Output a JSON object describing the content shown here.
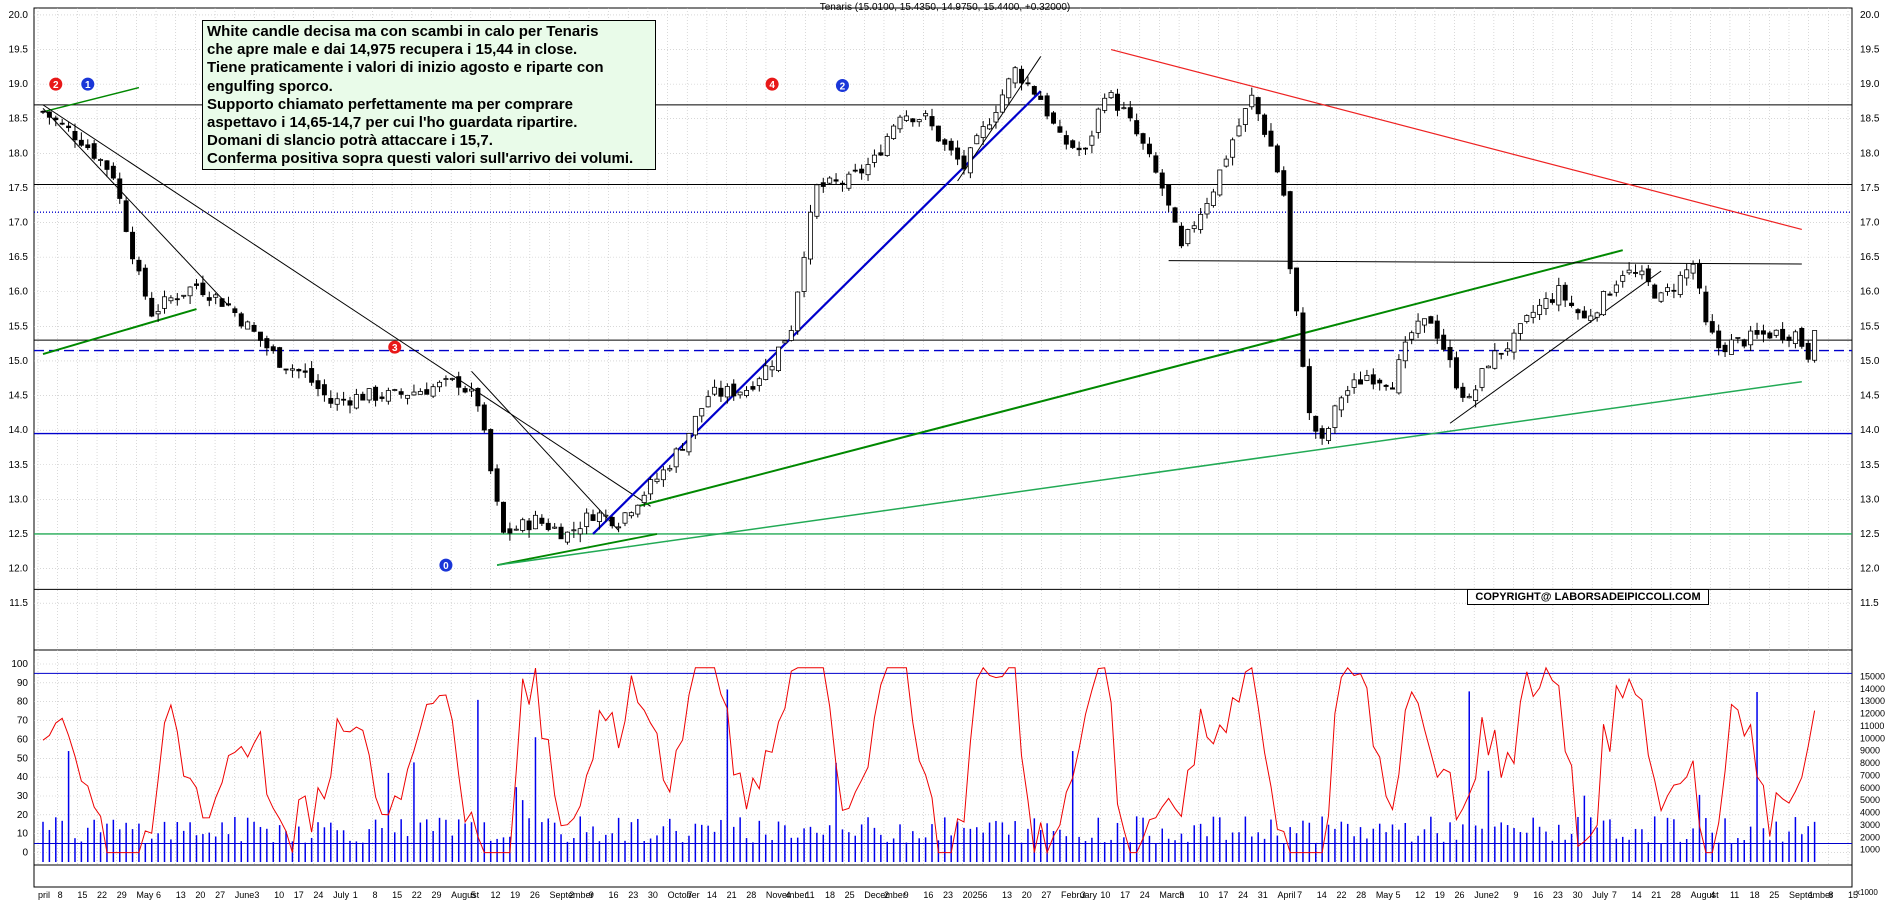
{
  "header": {
    "title": "Tenaris (15.0100, 15.4350, 14.9750, 15.4400, +0.32000)"
  },
  "note": {
    "lines": [
      "White candle decisa ma con scambi in calo per Tenaris",
      "che apre male e dai 14,975 recupera i 15,44 in close.",
      "Tiene praticamente i valori di inizio agosto e riparte con",
      "engulfing sporco.",
      "Supporto chiamato perfettamente ma per comprare",
      "aspettavo i 14,65-14,7 per cui l'ho guardata ripartire.",
      "Domani di slancio potrà attaccare i 15,7.",
      "Conferma positiva sopra questi valori sull'arrivo dei volumi."
    ]
  },
  "copyright": "COPYRIGHT@ LABORSADEIPICCOLI.COM",
  "colors": {
    "candle_up": "#ffffff",
    "candle_down": "#000000",
    "grid": "#c0c0c0",
    "support_blue": "#0000cc",
    "trend_green": "#008800",
    "light_green": "#22aa55",
    "resistance_red": "#ee2222",
    "osc_red": "#ee0000",
    "volume_blue": "#0000ee"
  },
  "chart_data": [
    {
      "type": "candlestick",
      "title": "Tenaris (15.0100, 15.4350, 14.9750, 15.4400, +0.32000)",
      "ylim": [
        11.3,
        20.1
      ],
      "y_ticks": [
        11.5,
        12.0,
        12.5,
        13.0,
        13.5,
        14.0,
        14.5,
        15.0,
        15.5,
        16.0,
        16.5,
        17.0,
        17.5,
        18.0,
        18.5,
        19.0,
        19.5,
        20.0
      ],
      "x_tick_labels": [
        "pril",
        "8",
        "15",
        "22",
        "29",
        "May",
        "6",
        "13",
        "20",
        "27",
        "June",
        "3",
        "10",
        "17",
        "24",
        "July",
        "1",
        "8",
        "15",
        "22",
        "29",
        "August",
        "5",
        "12",
        "19",
        "26",
        "September",
        "2",
        "9",
        "16",
        "23",
        "30",
        "October",
        "7",
        "14",
        "21",
        "28",
        "November",
        "4",
        "11",
        "18",
        "25",
        "December",
        "2",
        "9",
        "16",
        "23",
        "2025",
        "6",
        "13",
        "20",
        "27",
        "February",
        "3",
        "10",
        "17",
        "24",
        "March",
        "3",
        "10",
        "17",
        "24",
        "31",
        "April",
        "7",
        "14",
        "22",
        "28",
        "May",
        "5",
        "12",
        "19",
        "26",
        "June",
        "2",
        "9",
        "16",
        "23",
        "30",
        "July",
        "7",
        "14",
        "21",
        "28",
        "August",
        "4",
        "11",
        "18",
        "25",
        "September",
        "1",
        "8",
        "15"
      ],
      "last_bar": {
        "open": 15.01,
        "high": 15.435,
        "low": 14.975,
        "close": 15.44,
        "change": 0.32
      },
      "price_path": [
        [
          0,
          18.6
        ],
        [
          6,
          18.2
        ],
        [
          11,
          17.7
        ],
        [
          15,
          16.2
        ],
        [
          17,
          15.7
        ],
        [
          20,
          15.9
        ],
        [
          24,
          16.1
        ],
        [
          29,
          15.8
        ],
        [
          33,
          15.4
        ],
        [
          37,
          15.0
        ],
        [
          41,
          14.8
        ],
        [
          45,
          14.4
        ],
        [
          50,
          14.5
        ],
        [
          55,
          14.5
        ],
        [
          60,
          14.6
        ],
        [
          65,
          14.7
        ],
        [
          68,
          14.4
        ],
        [
          69,
          13.9
        ],
        [
          71,
          12.9
        ],
        [
          72,
          12.5
        ],
        [
          77,
          12.7
        ],
        [
          82,
          12.5
        ],
        [
          86,
          12.8
        ],
        [
          90,
          12.7
        ],
        [
          93,
          13.0
        ],
        [
          97,
          13.4
        ],
        [
          100,
          13.8
        ],
        [
          104,
          14.5
        ],
        [
          110,
          14.6
        ],
        [
          114,
          15.0
        ],
        [
          117,
          15.5
        ],
        [
          119,
          16.6
        ],
        [
          121,
          17.5
        ],
        [
          126,
          17.6
        ],
        [
          130,
          17.9
        ],
        [
          134,
          18.6
        ],
        [
          138,
          18.5
        ],
        [
          141,
          18.1
        ],
        [
          144,
          17.8
        ],
        [
          148,
          18.5
        ],
        [
          152,
          19.2
        ],
        [
          156,
          18.8
        ],
        [
          159,
          18.2
        ],
        [
          163,
          18.0
        ],
        [
          166,
          18.9
        ],
        [
          169,
          18.6
        ],
        [
          172,
          18.1
        ],
        [
          175,
          17.5
        ],
        [
          178,
          16.6
        ],
        [
          180,
          17.0
        ],
        [
          183,
          17.5
        ],
        [
          186,
          18.2
        ],
        [
          189,
          18.8
        ],
        [
          192,
          18.1
        ],
        [
          194,
          17.4
        ],
        [
          195,
          16.3
        ],
        [
          197,
          15.0
        ],
        [
          198,
          14.2
        ],
        [
          200,
          13.8
        ],
        [
          203,
          14.5
        ],
        [
          207,
          14.8
        ],
        [
          211,
          14.7
        ],
        [
          214,
          15.4
        ],
        [
          217,
          15.6
        ],
        [
          219,
          15.2
        ],
        [
          221,
          14.7
        ],
        [
          223,
          14.4
        ],
        [
          226,
          15.0
        ],
        [
          230,
          15.3
        ],
        [
          233,
          15.7
        ],
        [
          237,
          16.0
        ],
        [
          241,
          15.6
        ],
        [
          244,
          15.9
        ],
        [
          247,
          16.3
        ],
        [
          250,
          16.2
        ],
        [
          253,
          15.9
        ],
        [
          256,
          16.2
        ],
        [
          258,
          16.4
        ],
        [
          260,
          15.5
        ],
        [
          262,
          15.2
        ],
        [
          266,
          15.3
        ],
        [
          270,
          15.4
        ],
        [
          274,
          15.4
        ],
        [
          276,
          15.1
        ],
        [
          277,
          15.44
        ]
      ],
      "horizontal_levels": [
        {
          "value": 18.7,
          "color": "black"
        },
        {
          "value": 17.55,
          "color": "black"
        },
        {
          "value": 17.15,
          "color": "blue",
          "style": "dotted"
        },
        {
          "value": 15.3,
          "color": "black"
        },
        {
          "value": 15.15,
          "color": "blue",
          "style": "dashed"
        },
        {
          "value": 13.95,
          "color": "blue"
        },
        {
          "value": 12.5,
          "color": "green"
        },
        {
          "value": 11.7,
          "color": "black"
        }
      ],
      "markers": [
        {
          "label": "2",
          "color": "red"
        },
        {
          "label": "1",
          "color": "blue"
        },
        {
          "label": "3",
          "color": "red"
        },
        {
          "label": "0",
          "color": "blue"
        },
        {
          "label": "4",
          "color": "red"
        },
        {
          "label": "2",
          "color": "blue"
        }
      ]
    },
    {
      "type": "line",
      "name": "oscillator",
      "ylim": [
        -5,
        100
      ],
      "y_ticks": [
        0,
        10,
        20,
        30,
        40,
        50,
        60,
        70,
        80,
        90,
        100
      ],
      "levels": [
        95
      ]
    },
    {
      "type": "bar",
      "name": "volume",
      "ylim": [
        0,
        16000
      ],
      "y_ticks": [
        1000,
        2000,
        3000,
        4000,
        5000,
        6000,
        7000,
        8000,
        9000,
        10000,
        11000,
        12000,
        13000,
        14000,
        15000
      ],
      "y_unit": "x1000",
      "level": 1500
    }
  ]
}
